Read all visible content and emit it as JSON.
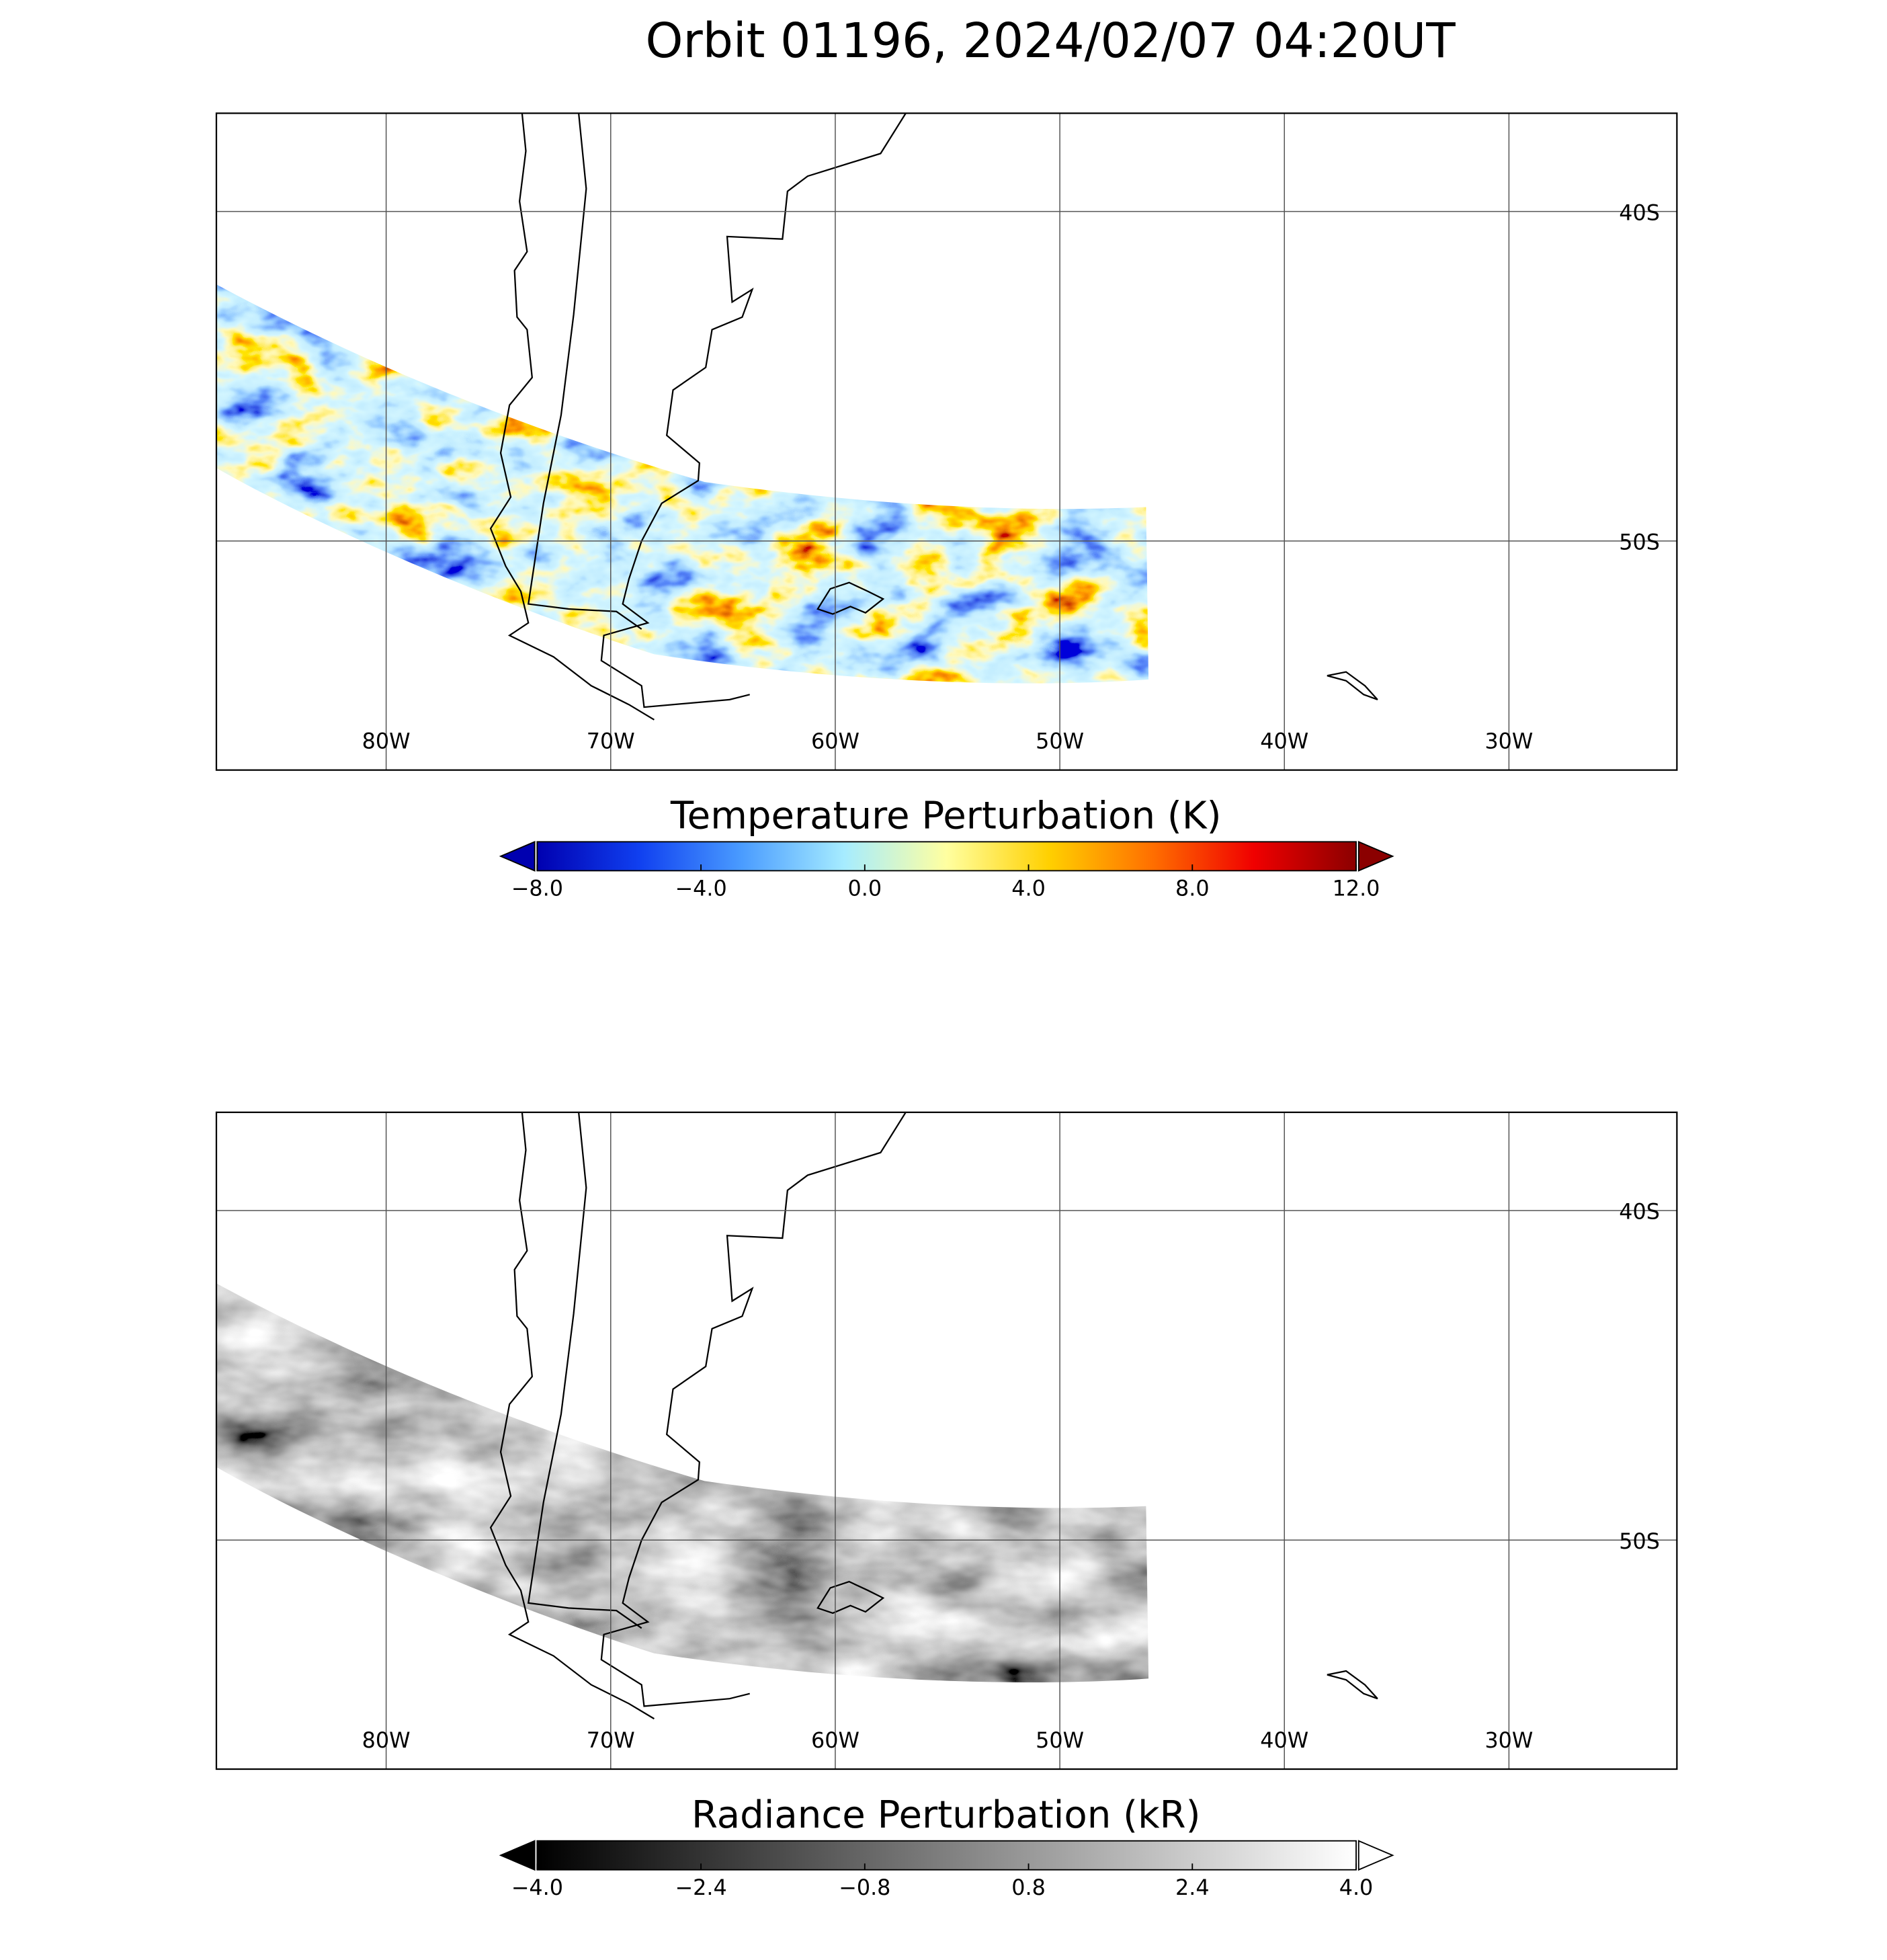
{
  "title": "Orbit 01196, 2024/02/07 04:20UT",
  "panels": [
    {
      "xlim": [
        -87.56,
        -22.52
      ],
      "ylim": [
        -56.95,
        -37.02
      ],
      "xticks": [
        {
          "value": -80,
          "label": "80W"
        },
        {
          "value": -70,
          "label": "70W"
        },
        {
          "value": -60,
          "label": "60W"
        },
        {
          "value": -50,
          "label": "50W"
        },
        {
          "value": -40,
          "label": "40W"
        },
        {
          "value": -30,
          "label": "30W"
        }
      ],
      "yticks": [
        {
          "value": -40,
          "label": "40S"
        },
        {
          "value": -50,
          "label": "50S"
        }
      ],
      "colorbar": {
        "label": "Temperature Perturbation (K)",
        "lim": [
          -8,
          12
        ],
        "ticks": [
          {
            "value": -8,
            "label": "−8.0"
          },
          {
            "value": -4,
            "label": "−4.0"
          },
          {
            "value": 0,
            "label": "0.0"
          },
          {
            "value": 4,
            "label": "4.0"
          },
          {
            "value": 8,
            "label": "8.0"
          },
          {
            "value": 12,
            "label": "12.0"
          }
        ],
        "colors": [
          "#0000b0",
          "#1040f0",
          "#4a9cff",
          "#a6ecff",
          "#ffffa0",
          "#ffd000",
          "#ff7000",
          "#f00000",
          "#8b0000"
        ],
        "under_color": "#0000b0",
        "over_color": "#8b0000"
      }
    },
    {
      "xlim": [
        -87.56,
        -22.52
      ],
      "ylim": [
        -56.95,
        -37.02
      ],
      "xticks": [
        {
          "value": -80,
          "label": "80W"
        },
        {
          "value": -70,
          "label": "70W"
        },
        {
          "value": -60,
          "label": "60W"
        },
        {
          "value": -50,
          "label": "50W"
        },
        {
          "value": -40,
          "label": "40W"
        },
        {
          "value": -30,
          "label": "30W"
        }
      ],
      "yticks": [
        {
          "value": -40,
          "label": "40S"
        },
        {
          "value": -50,
          "label": "50S"
        }
      ],
      "colorbar": {
        "label": "Radiance Perturbation (kR)",
        "lim": [
          -4,
          4
        ],
        "ticks": [
          {
            "value": -4,
            "label": "−4.0"
          },
          {
            "value": -2.4,
            "label": "−2.4"
          },
          {
            "value": -0.8,
            "label": "−0.8"
          },
          {
            "value": 0.8,
            "label": "0.8"
          },
          {
            "value": 2.4,
            "label": "2.4"
          },
          {
            "value": 4,
            "label": "4.0"
          }
        ],
        "colors": [
          "#000000",
          "#ffffff"
        ],
        "under_color": "#000000",
        "over_color": "#ffffff"
      }
    }
  ]
}
